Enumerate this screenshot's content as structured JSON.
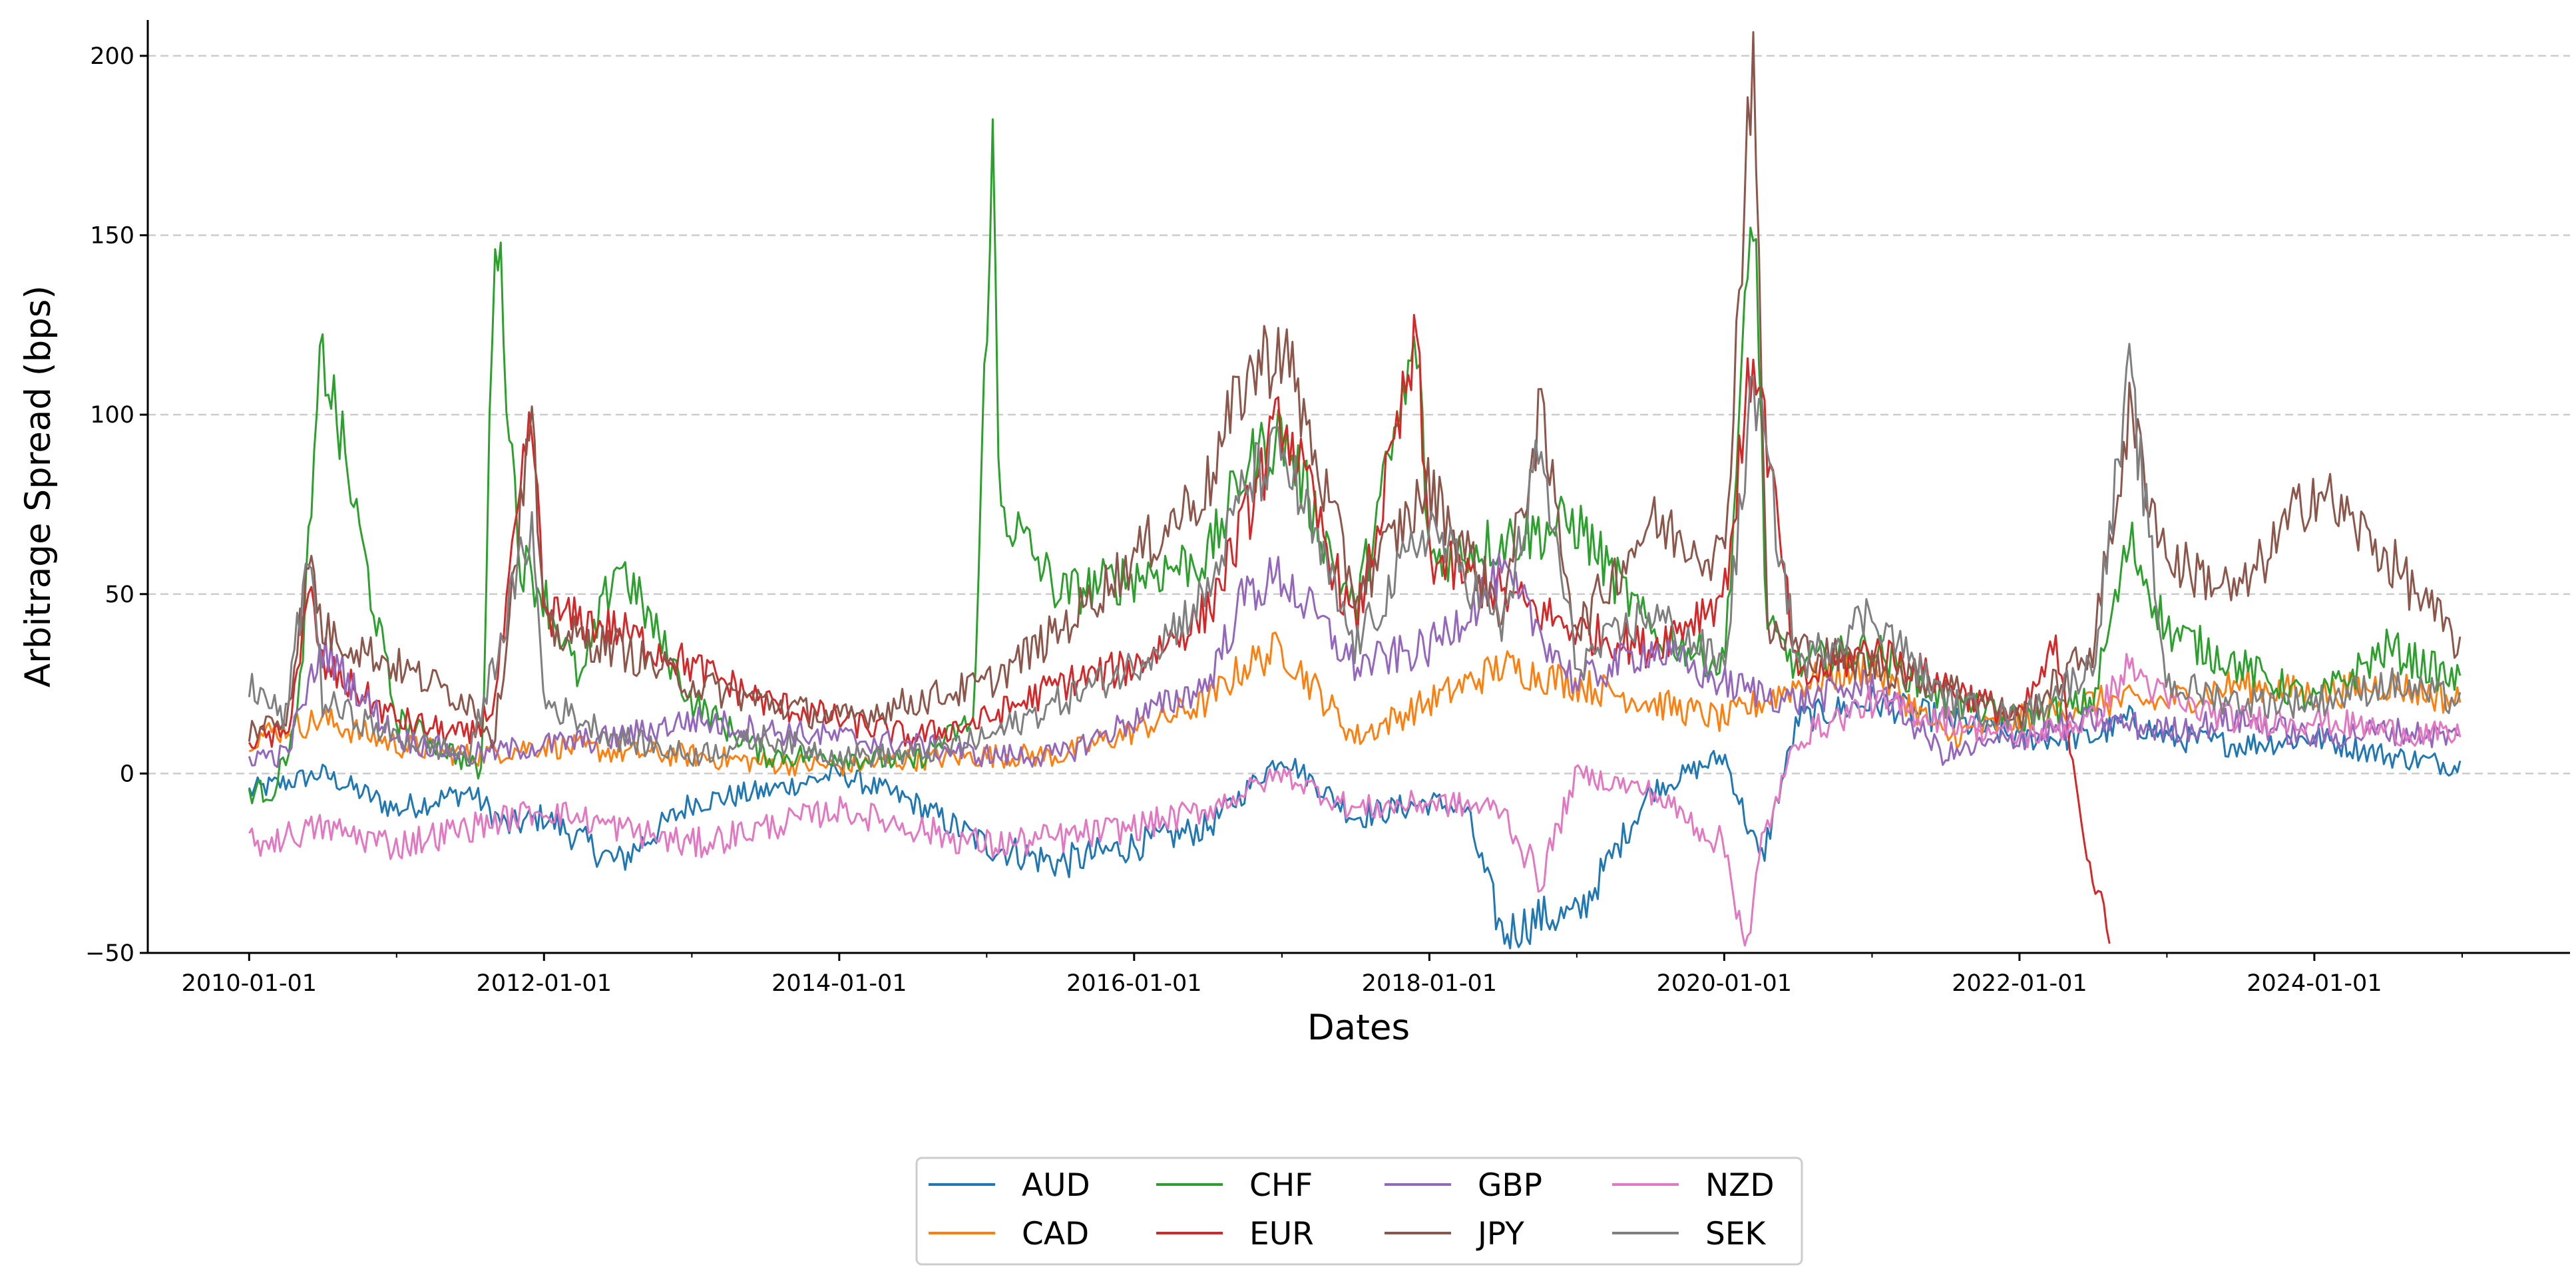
{
  "chart_data": {
    "type": "line",
    "title": "",
    "xlabel": "Dates",
    "ylabel": "Arbitrage Spread (bps)",
    "x_type": "date",
    "xlim": [
      "2009-04-25",
      "2025-09-25"
    ],
    "ylim": [
      -50,
      210
    ],
    "x_ticks": [
      "2010-01-01",
      "2012-01-01",
      "2014-01-01",
      "2016-01-01",
      "2018-01-01",
      "2020-01-01",
      "2022-01-01",
      "2024-01-01"
    ],
    "x_tick_labels": [
      "2010-01-01",
      "2012-01-01",
      "2014-01-01",
      "2016-01-01",
      "2018-01-01",
      "2020-01-01",
      "2022-01-01",
      "2024-01-01"
    ],
    "y_ticks": [
      -50,
      0,
      50,
      100,
      150,
      200
    ],
    "y_tick_labels": [
      "−50",
      "0",
      "50",
      "100",
      "150",
      "200"
    ],
    "grid": "horizontal dashed",
    "legend_position": "bottom-center",
    "legend_columns": 4,
    "series": [
      {
        "name": "AUD",
        "color": "#1f77b4",
        "x": [
          "2010-01-01",
          "2010-07-01",
          "2011-01-01",
          "2011-07-01",
          "2011-10-01",
          "2012-01-01",
          "2012-07-01",
          "2013-01-01",
          "2013-07-01",
          "2014-01-01",
          "2014-07-01",
          "2015-01-01",
          "2015-07-01",
          "2016-01-01",
          "2016-07-01",
          "2016-10-01",
          "2017-01-01",
          "2017-07-01",
          "2018-01-01",
          "2018-04-01",
          "2018-07-01",
          "2018-10-01",
          "2019-01-01",
          "2019-07-01",
          "2020-01-01",
          "2020-04-01",
          "2020-07-01",
          "2021-01-01",
          "2021-07-01",
          "2022-01-01",
          "2022-07-01",
          "2022-10-01",
          "2023-01-01",
          "2023-07-01",
          "2024-01-01",
          "2024-07-01",
          "2024-12-31"
        ],
        "y": [
          -5,
          0,
          -10,
          -5,
          -15,
          -12,
          -25,
          -8,
          -5,
          0,
          -8,
          -20,
          -25,
          -20,
          -15,
          -5,
          5,
          -12,
          -8,
          -10,
          -45,
          -40,
          -40,
          -5,
          5,
          -25,
          15,
          20,
          15,
          10,
          10,
          15,
          10,
          8,
          10,
          5,
          2
        ]
      },
      {
        "name": "CAD",
        "color": "#ff7f0e",
        "x": [
          "2010-01-01",
          "2010-07-01",
          "2011-01-01",
          "2011-07-01",
          "2012-01-01",
          "2012-07-01",
          "2013-01-01",
          "2013-07-01",
          "2014-01-01",
          "2014-07-01",
          "2015-01-01",
          "2015-07-01",
          "2016-01-01",
          "2016-07-01",
          "2016-10-01",
          "2017-01-01",
          "2017-07-01",
          "2018-01-01",
          "2018-07-01",
          "2019-01-01",
          "2019-07-01",
          "2020-01-01",
          "2020-07-01",
          "2021-01-01",
          "2021-07-01",
          "2022-01-01",
          "2022-07-01",
          "2023-01-01",
          "2023-07-01",
          "2024-01-01",
          "2024-07-01",
          "2024-12-31"
        ],
        "y": [
          10,
          15,
          8,
          5,
          8,
          6,
          5,
          3,
          2,
          4,
          5,
          5,
          12,
          20,
          30,
          35,
          10,
          20,
          30,
          25,
          20,
          15,
          25,
          30,
          10,
          15,
          20,
          20,
          25,
          22,
          25,
          20
        ]
      },
      {
        "name": "CHF",
        "color": "#2ca02c",
        "x": [
          "2010-01-01",
          "2010-03-01",
          "2010-05-01",
          "2010-07-01",
          "2011-01-01",
          "2011-06-01",
          "2011-08-01",
          "2011-09-01",
          "2011-11-01",
          "2012-01-01",
          "2012-04-01",
          "2012-07-01",
          "2013-01-01",
          "2013-07-01",
          "2014-01-01",
          "2014-07-01",
          "2014-12-01",
          "2015-01-15",
          "2015-02-01",
          "2015-07-01",
          "2016-01-01",
          "2016-07-01",
          "2016-10-01",
          "2017-01-01",
          "2017-07-01",
          "2017-12-01",
          "2018-01-01",
          "2018-07-01",
          "2019-01-01",
          "2019-07-01",
          "2020-01-01",
          "2020-03-15",
          "2020-04-15",
          "2020-07-01",
          "2021-01-01",
          "2021-07-01",
          "2022-01-01",
          "2022-07-01",
          "2022-10-01",
          "2023-01-01",
          "2023-07-01",
          "2024-01-01",
          "2024-07-01",
          "2024-12-31"
        ],
        "y": [
          -5,
          -5,
          15,
          119,
          15,
          5,
          0,
          160,
          60,
          50,
          25,
          60,
          20,
          5,
          5,
          3,
          15,
          180,
          75,
          50,
          55,
          60,
          85,
          95,
          45,
          120,
          60,
          65,
          70,
          40,
          30,
          165,
          40,
          30,
          35,
          20,
          15,
          20,
          65,
          40,
          30,
          20,
          35,
          25
        ]
      },
      {
        "name": "EUR",
        "color": "#d62728",
        "x": [
          "2010-01-01",
          "2010-04-01",
          "2010-06-01",
          "2010-07-01",
          "2011-01-01",
          "2011-07-01",
          "2011-09-01",
          "2011-12-01",
          "2012-01-01",
          "2012-07-01",
          "2013-01-01",
          "2013-07-01",
          "2014-01-01",
          "2014-07-01",
          "2015-01-01",
          "2015-07-01",
          "2016-01-01",
          "2016-07-01",
          "2016-10-01",
          "2017-01-01",
          "2017-07-01",
          "2017-12-01",
          "2018-01-01",
          "2018-07-01",
          "2019-01-01",
          "2019-07-01",
          "2020-01-01",
          "2020-03-15",
          "2020-07-01",
          "2021-01-01",
          "2021-07-01",
          "2022-01-01",
          "2022-04-01",
          "2022-06-15",
          "2022-08-15"
        ],
        "y": [
          10,
          10,
          50,
          30,
          15,
          10,
          20,
          100,
          45,
          40,
          30,
          20,
          15,
          10,
          15,
          25,
          30,
          45,
          70,
          100,
          40,
          120,
          60,
          50,
          40,
          35,
          50,
          120,
          25,
          35,
          25,
          15,
          35,
          -20,
          -50
        ]
      },
      {
        "name": "GBP",
        "color": "#9467bd",
        "x": [
          "2010-01-01",
          "2010-04-01",
          "2010-07-01",
          "2011-01-01",
          "2011-07-01",
          "2012-01-01",
          "2012-07-01",
          "2013-01-01",
          "2013-07-01",
          "2014-01-01",
          "2014-07-01",
          "2015-01-01",
          "2015-07-01",
          "2016-01-01",
          "2016-07-01",
          "2016-10-01",
          "2017-01-01",
          "2017-07-01",
          "2018-01-01",
          "2018-07-01",
          "2019-01-01",
          "2019-07-01",
          "2020-01-01",
          "2020-07-01",
          "2021-01-01",
          "2021-07-01",
          "2022-01-01",
          "2022-07-01",
          "2023-01-01",
          "2023-07-01",
          "2024-01-01",
          "2024-07-01",
          "2024-12-31"
        ],
        "y": [
          5,
          5,
          35,
          10,
          5,
          8,
          10,
          15,
          12,
          10,
          8,
          5,
          5,
          15,
          25,
          50,
          55,
          30,
          35,
          55,
          25,
          35,
          25,
          20,
          25,
          5,
          10,
          15,
          12,
          15,
          10,
          12,
          10
        ]
      },
      {
        "name": "JPY",
        "color": "#8c564b",
        "x": [
          "2010-01-01",
          "2010-04-01",
          "2010-06-01",
          "2010-07-01",
          "2011-01-01",
          "2011-07-01",
          "2011-09-01",
          "2011-12-01",
          "2012-01-01",
          "2012-07-01",
          "2013-01-01",
          "2013-07-01",
          "2014-01-01",
          "2014-07-01",
          "2015-01-01",
          "2015-07-01",
          "2016-01-01",
          "2016-07-01",
          "2016-10-01",
          "2017-01-01",
          "2017-07-01",
          "2018-01-01",
          "2018-07-01",
          "2018-10-01",
          "2019-01-01",
          "2019-07-01",
          "2020-01-01",
          "2020-03-15",
          "2020-04-15",
          "2020-07-01",
          "2021-01-01",
          "2021-07-01",
          "2022-01-01",
          "2022-07-01",
          "2022-10-01",
          "2023-01-01",
          "2023-07-01",
          "2024-01-01",
          "2024-07-01",
          "2024-12-31"
        ],
        "y": [
          12,
          15,
          60,
          40,
          30,
          20,
          10,
          100,
          40,
          35,
          25,
          20,
          15,
          20,
          25,
          40,
          60,
          80,
          110,
          120,
          50,
          80,
          45,
          100,
          40,
          70,
          60,
          210,
          40,
          35,
          30,
          25,
          15,
          35,
          100,
          60,
          50,
          80,
          60,
          35
        ]
      },
      {
        "name": "NZD",
        "color": "#e377c2",
        "x": [
          "2010-01-01",
          "2010-07-01",
          "2011-01-01",
          "2011-07-01",
          "2012-01-01",
          "2012-07-01",
          "2013-01-01",
          "2013-07-01",
          "2014-01-01",
          "2014-07-01",
          "2015-01-01",
          "2015-07-01",
          "2016-01-01",
          "2016-07-01",
          "2016-10-01",
          "2017-01-01",
          "2017-07-01",
          "2018-01-01",
          "2018-07-01",
          "2018-10-01",
          "2019-01-01",
          "2019-07-01",
          "2020-01-01",
          "2020-03-01",
          "2020-04-01",
          "2020-07-01",
          "2021-01-01",
          "2021-07-01",
          "2022-01-01",
          "2022-07-01",
          "2022-10-01",
          "2023-01-01",
          "2023-07-01",
          "2024-01-01",
          "2024-07-01",
          "2024-12-31"
        ],
        "y": [
          -20,
          -15,
          -20,
          -15,
          -10,
          -15,
          -20,
          -15,
          -10,
          -15,
          -20,
          -18,
          -15,
          -10,
          -5,
          0,
          -10,
          -8,
          -10,
          -30,
          0,
          -5,
          -20,
          -50,
          -20,
          10,
          20,
          15,
          10,
          15,
          30,
          20,
          15,
          15,
          12,
          10
        ]
      },
      {
        "name": "SEK",
        "color": "#7f7f7f",
        "x": [
          "2010-01-01",
          "2010-04-01",
          "2010-06-01",
          "2010-07-01",
          "2011-01-01",
          "2011-07-01",
          "2011-12-01",
          "2012-01-01",
          "2012-07-01",
          "2013-01-01",
          "2013-07-01",
          "2014-01-01",
          "2014-07-01",
          "2015-01-01",
          "2015-07-01",
          "2016-01-01",
          "2016-07-01",
          "2016-10-01",
          "2017-01-01",
          "2017-07-01",
          "2018-01-01",
          "2018-07-01",
          "2018-10-01",
          "2019-01-01",
          "2019-07-01",
          "2020-01-01",
          "2020-03-15",
          "2020-07-01",
          "2021-01-01",
          "2021-07-01",
          "2022-01-01",
          "2022-07-01",
          "2022-10-01",
          "2023-01-01",
          "2023-07-01",
          "2024-01-01",
          "2024-07-01",
          "2024-12-31"
        ],
        "y": [
          25,
          15,
          65,
          20,
          10,
          5,
          70,
          20,
          10,
          5,
          10,
          5,
          5,
          10,
          20,
          30,
          50,
          80,
          90,
          35,
          70,
          40,
          90,
          30,
          45,
          30,
          110,
          30,
          45,
          20,
          15,
          30,
          110,
          25,
          20,
          20,
          25,
          20
        ]
      }
    ]
  }
}
